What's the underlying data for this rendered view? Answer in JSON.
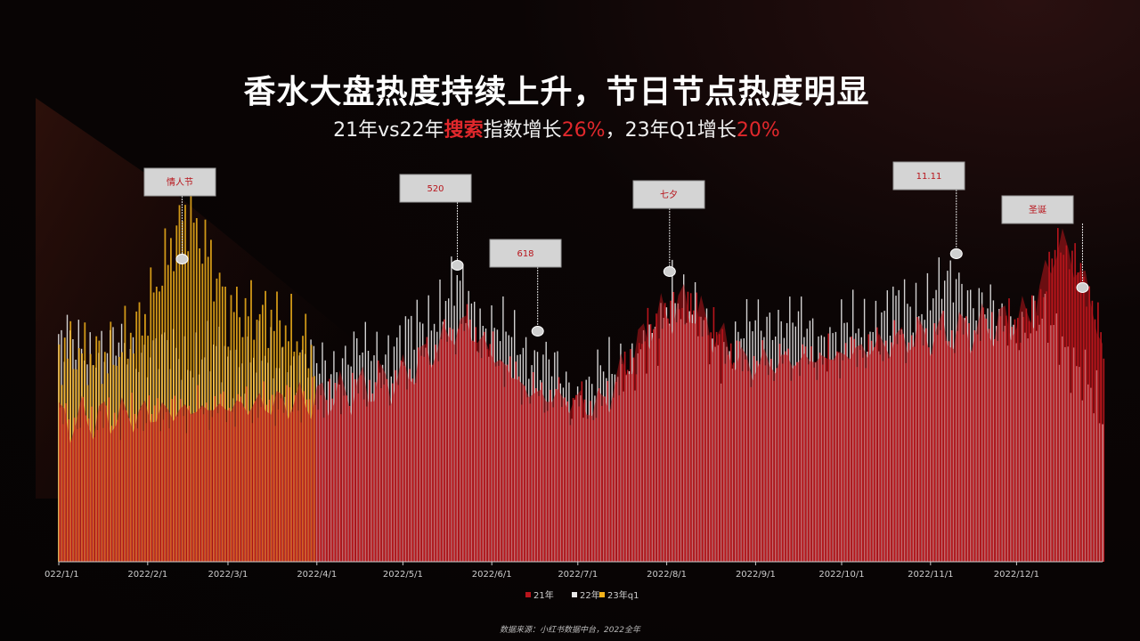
{
  "title": "香水大盘热度持续上升，节日节点热度明显",
  "subtitle": {
    "p1": "21年vs22年",
    "p2": "搜索",
    "p3": "指数增长",
    "p4": "26%",
    "p5": "，23年Q1增长",
    "p6": "20%"
  },
  "source": "数据来源：小红书数据中台，2022全年",
  "colors": {
    "s21": "#b8151c",
    "s22": "#e8e8e8",
    "s23": "#f2b21b",
    "accent": "#e0282c"
  },
  "chart_data": {
    "type": "bar",
    "x_ticks": [
      "022/1/1",
      "2022/2/1",
      "2022/3/1",
      "2022/4/1",
      "2022/5/1",
      "2022/6/1",
      "2022/7/1",
      "2022/8/1",
      "2022/9/1",
      "2022/10/1",
      "2022/11/1",
      "2022/12/1"
    ],
    "series": [
      {
        "name": "21年",
        "values": [
          {
            "day": 1,
            "v": 0.4
          },
          {
            "day": 31,
            "v": 0.42
          },
          {
            "day": 60,
            "v": 0.44
          },
          {
            "day": 90,
            "v": 0.46
          },
          {
            "day": 120,
            "v": 0.52
          },
          {
            "day": 142,
            "v": 0.68
          },
          {
            "day": 165,
            "v": 0.48
          },
          {
            "day": 190,
            "v": 0.44
          },
          {
            "day": 208,
            "v": 0.68
          },
          {
            "day": 220,
            "v": 0.74
          },
          {
            "day": 240,
            "v": 0.56
          },
          {
            "day": 270,
            "v": 0.58
          },
          {
            "day": 300,
            "v": 0.64
          },
          {
            "day": 320,
            "v": 0.66
          },
          {
            "day": 340,
            "v": 0.7
          },
          {
            "day": 350,
            "v": 0.92
          },
          {
            "day": 360,
            "v": 0.78
          },
          {
            "day": 365,
            "v": 0.6
          }
        ]
      },
      {
        "name": "22年",
        "values": [
          {
            "day": 1,
            "v": 0.62
          },
          {
            "day": 31,
            "v": 0.6
          },
          {
            "day": 60,
            "v": 0.58
          },
          {
            "day": 90,
            "v": 0.56
          },
          {
            "day": 120,
            "v": 0.62
          },
          {
            "day": 140,
            "v": 0.78
          },
          {
            "day": 150,
            "v": 0.68
          },
          {
            "day": 170,
            "v": 0.58
          },
          {
            "day": 180,
            "v": 0.48
          },
          {
            "day": 210,
            "v": 0.62
          },
          {
            "day": 215,
            "v": 0.8
          },
          {
            "day": 230,
            "v": 0.6
          },
          {
            "day": 250,
            "v": 0.7
          },
          {
            "day": 270,
            "v": 0.64
          },
          {
            "day": 300,
            "v": 0.74
          },
          {
            "day": 315,
            "v": 0.8
          },
          {
            "day": 330,
            "v": 0.68
          },
          {
            "day": 350,
            "v": 0.66
          },
          {
            "day": 365,
            "v": 0.4
          }
        ]
      },
      {
        "name": "23年q1",
        "values": [
          {
            "day": 1,
            "v": 0.6
          },
          {
            "day": 20,
            "v": 0.58
          },
          {
            "day": 31,
            "v": 0.7
          },
          {
            "day": 45,
            "v": 1.0
          },
          {
            "day": 52,
            "v": 0.9
          },
          {
            "day": 60,
            "v": 0.72
          },
          {
            "day": 75,
            "v": 0.7
          },
          {
            "day": 90,
            "v": 0.6
          }
        ]
      }
    ],
    "annotations": [
      {
        "label": "情人节",
        "day": 44
      },
      {
        "label": "520",
        "day": 140
      },
      {
        "label": "618",
        "day": 168
      },
      {
        "label": "七夕",
        "day": 214
      },
      {
        "label": "11.11",
        "day": 314
      },
      {
        "label": "圣诞",
        "day": 358
      }
    ],
    "legend_position": "bottom",
    "grid": false
  }
}
